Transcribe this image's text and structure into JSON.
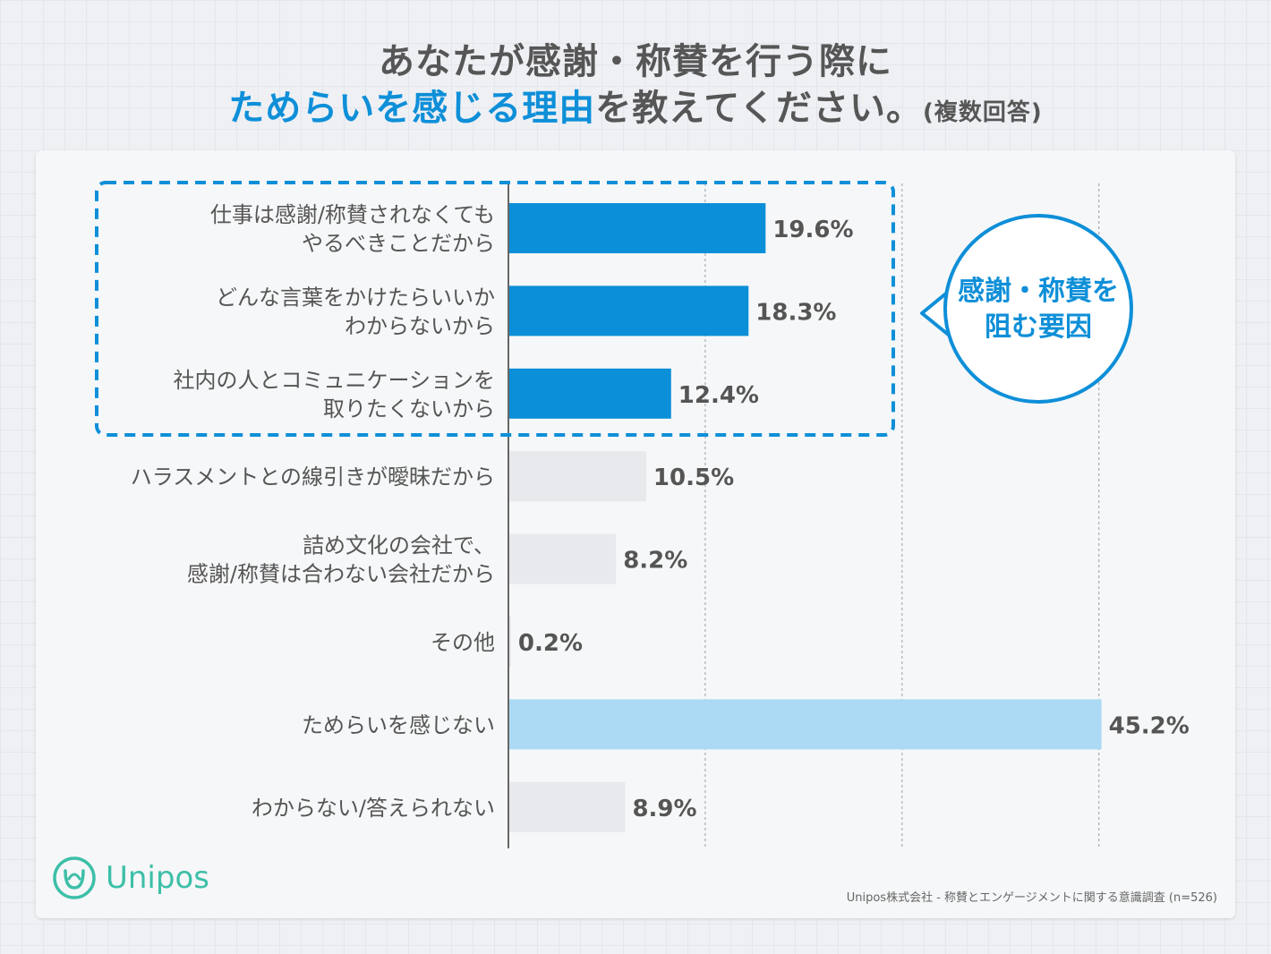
{
  "title": {
    "line1": "あなたが感謝・称賛を行う際に",
    "line2_highlight": "ためらいを感じる理由",
    "line2_rest": "を教えてください。",
    "line2_note": "(複数回答)"
  },
  "callout": {
    "line1": "感謝・称賛を",
    "line2": "阻む要因"
  },
  "logo": {
    "name": "Unipos"
  },
  "source": "Unipos株式会社 - 称賛とエンゲージメントに関する意識調査 (n=526)",
  "colors": {
    "highlight": "#0e8fd8",
    "bar_primary": "#0b8fd8",
    "bar_light": "#acdaf5",
    "bar_gray": "#e8e9ed",
    "logo": "#3dbfa8",
    "title": "#565656"
  },
  "chart_data": {
    "type": "bar",
    "orientation": "horizontal",
    "unit": "%",
    "xlim": [
      0,
      50
    ],
    "grid": true,
    "categories": [
      [
        "仕事は感謝/称賛されなくても",
        "やるべきことだから"
      ],
      [
        "どんな言葉をかけたらいいか",
        "わからないから"
      ],
      [
        "社内の人とコミュニケーションを",
        "取りたくないから"
      ],
      [
        "ハラスメントとの線引きが曖昧だから"
      ],
      [
        "詰め文化の会社で、",
        "感謝/称賛は合わない会社だから"
      ],
      [
        "その他"
      ],
      [
        "ためらいを感じない"
      ],
      [
        "わからない/答えられない"
      ]
    ],
    "values": [
      19.6,
      18.3,
      12.4,
      10.5,
      8.2,
      0.2,
      45.2,
      8.9
    ],
    "value_labels": [
      "19.6%",
      "18.3%",
      "12.4%",
      "10.5%",
      "8.2%",
      "0.2%",
      "45.2%",
      "8.9%"
    ],
    "highlighted_group": [
      0,
      1,
      2
    ]
  }
}
